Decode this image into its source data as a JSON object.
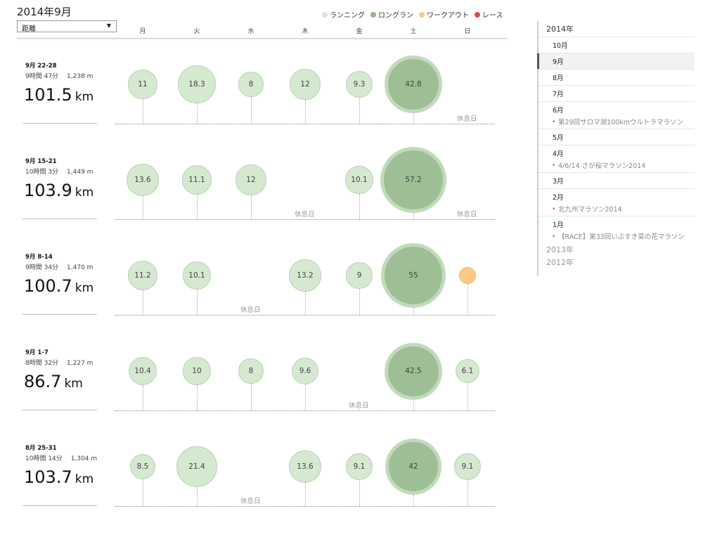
{
  "title": "2014年9月",
  "metric_select": "距離",
  "legend": [
    {
      "label": "ランニング",
      "color": "#d5e8d0"
    },
    {
      "label": "ロングラン",
      "color": "#8fb886"
    },
    {
      "label": "ワークアウト",
      "color": "#fbcb82"
    },
    {
      "label": "レース",
      "color": "#e34b4b"
    }
  ],
  "days": [
    "月",
    "火",
    "水",
    "木",
    "金",
    "土",
    "日"
  ],
  "rest_label": "休息日",
  "weeks": [
    {
      "range": "9月 22-28",
      "time": "9時間 47分",
      "dist": "1,238 m",
      "total": "101.5",
      "unit": "km",
      "runs": [
        {
          "v": "11",
          "t": "run"
        },
        {
          "v": "18.3",
          "t": "run"
        },
        {
          "v": "8",
          "t": "run"
        },
        {
          "v": "12",
          "t": "run"
        },
        {
          "v": "9.3",
          "t": "run"
        },
        {
          "v": "42.8",
          "t": "long"
        },
        {
          "v": null,
          "t": "rest"
        }
      ]
    },
    {
      "range": "9月 15-21",
      "time": "10時間 3分",
      "dist": "1,449 m",
      "total": "103.9",
      "unit": "km",
      "runs": [
        {
          "v": "13.6",
          "t": "run"
        },
        {
          "v": "11.1",
          "t": "run"
        },
        {
          "v": "12",
          "t": "run"
        },
        {
          "v": null,
          "t": "rest"
        },
        {
          "v": "10.1",
          "t": "run"
        },
        {
          "v": "57.2",
          "t": "long"
        },
        {
          "v": null,
          "t": "rest"
        }
      ]
    },
    {
      "range": "9月 8-14",
      "time": "9時間 34分",
      "dist": "1,470 m",
      "total": "100.7",
      "unit": "km",
      "runs": [
        {
          "v": "11.2",
          "t": "run"
        },
        {
          "v": "10.1",
          "t": "run"
        },
        {
          "v": null,
          "t": "rest"
        },
        {
          "v": "13.2",
          "t": "run"
        },
        {
          "v": "9",
          "t": "run"
        },
        {
          "v": "55",
          "t": "long"
        },
        {
          "v": "",
          "t": "work"
        }
      ]
    },
    {
      "range": "9月 1-7",
      "time": "8時間 32分",
      "dist": "1,227 m",
      "total": "86.7",
      "unit": "km",
      "runs": [
        {
          "v": "10.4",
          "t": "run"
        },
        {
          "v": "10",
          "t": "run"
        },
        {
          "v": "8",
          "t": "run"
        },
        {
          "v": "9.6",
          "t": "run"
        },
        {
          "v": null,
          "t": "rest"
        },
        {
          "v": "42.5",
          "t": "long"
        },
        {
          "v": "6.1",
          "t": "run"
        }
      ]
    },
    {
      "range": "8月 25-31",
      "time": "10時間 14分",
      "dist": "1,304 m",
      "total": "103.7",
      "unit": "km",
      "runs": [
        {
          "v": "8.5",
          "t": "run"
        },
        {
          "v": "21.4",
          "t": "run"
        },
        {
          "v": null,
          "t": "rest"
        },
        {
          "v": "13.6",
          "t": "run"
        },
        {
          "v": "9.1",
          "t": "run"
        },
        {
          "v": "42",
          "t": "long"
        },
        {
          "v": "9.1",
          "t": "run"
        }
      ]
    }
  ],
  "sidebar": {
    "year_2014": "2014年",
    "months": [
      {
        "label": "10月",
        "races": []
      },
      {
        "label": "9月",
        "races": [],
        "active": true
      },
      {
        "label": "8月",
        "races": []
      },
      {
        "label": "7月",
        "races": []
      },
      {
        "label": "6月",
        "races": [
          "第29回サロマ湖100kmウルトラマラソン"
        ]
      },
      {
        "label": "5月",
        "races": []
      },
      {
        "label": "4月",
        "races": [
          "4/6/14 さが桜マラソン2014"
        ]
      },
      {
        "label": "3月",
        "races": []
      },
      {
        "label": "2月",
        "races": [
          "北九州マラソン2014"
        ]
      },
      {
        "label": "1月",
        "races": [
          "【RACE】第33回いぶすき菜の花マラソン"
        ]
      }
    ],
    "other_years": [
      "2013年",
      "2012年"
    ]
  }
}
